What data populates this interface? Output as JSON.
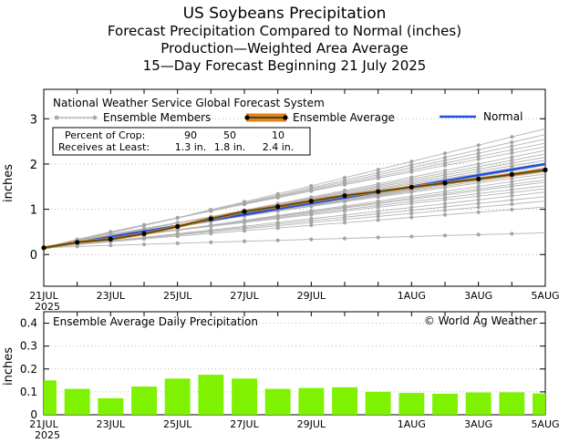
{
  "titles": {
    "line1": "US Soybeans Precipitation",
    "line2": "Forecast Precipitation Compared to Normal (inches)",
    "line3": "Production—Weighted Area Average",
    "line4": "15—Day Forecast Beginning 21 July 2025"
  },
  "x_labels": [
    {
      "day": 0,
      "label": "21JUL"
    },
    {
      "day": 2,
      "label": "23JUL"
    },
    {
      "day": 4,
      "label": "25JUL"
    },
    {
      "day": 6,
      "label": "27JUL"
    },
    {
      "day": 8,
      "label": "29JUL"
    },
    {
      "day": 11,
      "label": "1AUG"
    },
    {
      "day": 13,
      "label": "3AUG"
    },
    {
      "day": 15,
      "label": "5AUG"
    }
  ],
  "year_label": "2025",
  "chart_data": [
    {
      "type": "line",
      "title": "National Weather Service Global Forecast System",
      "ylabel": "inches",
      "ylim": [
        -0.7,
        3.65
      ],
      "yticks": [
        0,
        1,
        2,
        3
      ],
      "xlim": [
        0,
        15
      ],
      "legend": {
        "members": "Ensemble Members",
        "average": "Ensemble Average",
        "normal": "Normal"
      },
      "crop_table": {
        "row1_label": "Percent of Crop:",
        "row1_values": [
          "90",
          "50",
          "10"
        ],
        "row2_label": "Receives at Least:",
        "row2_values": [
          "1.3 in.",
          "1.8 in.",
          "2.4 in."
        ]
      },
      "normal": {
        "x": [
          0,
          15
        ],
        "y": [
          0.14,
          2.0
        ]
      },
      "ensemble_average": {
        "x": [
          0,
          1,
          2,
          3,
          4,
          5,
          6,
          7,
          8,
          9,
          10,
          11,
          12,
          13,
          14,
          15
        ],
        "y": [
          0.15,
          0.27,
          0.34,
          0.46,
          0.62,
          0.79,
          0.95,
          1.06,
          1.18,
          1.3,
          1.39,
          1.49,
          1.58,
          1.67,
          1.77,
          1.87
        ]
      },
      "ensemble_members_final": [
        0.48,
        1.05,
        1.18,
        1.28,
        1.38,
        1.45,
        1.52,
        1.6,
        1.65,
        1.72,
        1.78,
        1.83,
        1.88,
        1.92,
        1.97,
        2.02,
        2.08,
        2.15,
        2.22,
        2.3,
        2.38,
        2.46,
        2.55,
        2.65,
        2.78
      ],
      "colors": {
        "member": "#aaaaaa",
        "average_outline": "#e8801a",
        "average_fill": "#2f4f2f",
        "normal": "#1f4fe0"
      }
    },
    {
      "type": "bar",
      "title": "Ensemble Average Daily Precipitation",
      "credit": "© World Ag Weather",
      "ylabel": "inches",
      "ylim": [
        0,
        0.45
      ],
      "yticks": [
        "0",
        "0.1",
        "0.2",
        "0.3",
        "0.4"
      ],
      "ytick_values": [
        0,
        0.1,
        0.2,
        0.3,
        0.4
      ],
      "x": [
        0,
        1,
        2,
        3,
        4,
        5,
        6,
        7,
        8,
        9,
        10,
        11,
        12,
        13,
        14,
        15
      ],
      "values": [
        0.15,
        0.113,
        0.072,
        0.123,
        0.158,
        0.175,
        0.158,
        0.113,
        0.117,
        0.12,
        0.1,
        0.095,
        0.092,
        0.097,
        0.098,
        0.093
      ],
      "color": "#7ef200"
    }
  ]
}
